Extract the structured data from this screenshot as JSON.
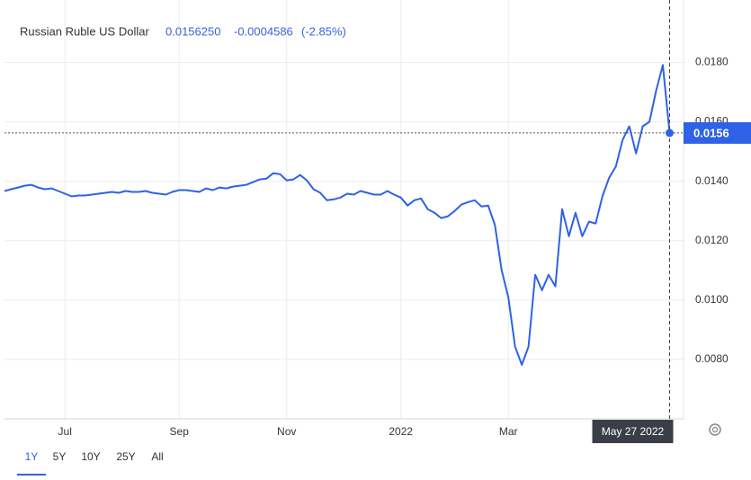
{
  "chart_data": {
    "type": "line",
    "title": "Russian Ruble US Dollar",
    "price": "0.0156250",
    "change": "-0.0004586",
    "change_percent": "(-2.85%)",
    "last_price_label": "0.0156",
    "crosshair_label": "May 27 2022",
    "ranges": [
      "1Y",
      "5Y",
      "10Y",
      "25Y",
      "All"
    ],
    "active_range": "1Y",
    "categories": [
      null,
      null,
      null,
      null,
      null,
      null,
      null,
      null,
      null,
      "Jul",
      null,
      null,
      null,
      null,
      null,
      null,
      null,
      null,
      null,
      null,
      null,
      null,
      null,
      null,
      null,
      null,
      "Sep",
      null,
      null,
      null,
      null,
      null,
      null,
      null,
      null,
      null,
      null,
      null,
      null,
      null,
      null,
      null,
      "Nov",
      null,
      null,
      null,
      null,
      null,
      null,
      null,
      null,
      null,
      null,
      null,
      null,
      null,
      null,
      null,
      null,
      "2022",
      null,
      null,
      null,
      null,
      null,
      null,
      null,
      null,
      null,
      null,
      null,
      null,
      null,
      null,
      null,
      "Mar",
      null,
      null,
      null,
      null,
      null,
      null,
      null,
      null,
      null,
      null,
      null,
      null,
      null,
      null,
      null,
      null,
      null,
      null,
      null,
      null,
      null,
      null,
      null,
      null
    ],
    "series": [
      {
        "name": "Russian Ruble US Dollar",
        "color": "#2f62e6",
        "values": [
          0.01367,
          0.01373,
          0.01379,
          0.01385,
          0.01388,
          0.01379,
          0.01373,
          0.01376,
          0.01367,
          0.01358,
          0.01349,
          0.01352,
          0.01352,
          0.01355,
          0.01358,
          0.01361,
          0.01364,
          0.01361,
          0.01367,
          0.01364,
          0.01364,
          0.01367,
          0.01361,
          0.01358,
          0.01355,
          0.01364,
          0.0137,
          0.0137,
          0.01367,
          0.01364,
          0.01376,
          0.0137,
          0.01379,
          0.01376,
          0.01382,
          0.01385,
          0.01388,
          0.01397,
          0.01406,
          0.01409,
          0.01427,
          0.01424,
          0.01403,
          0.01406,
          0.01421,
          0.01403,
          0.01373,
          0.01361,
          0.01336,
          0.01339,
          0.01345,
          0.01358,
          0.01355,
          0.01367,
          0.01361,
          0.01355,
          0.01355,
          0.01367,
          0.01355,
          0.01345,
          0.01318,
          0.01336,
          0.01342,
          0.01306,
          0.01294,
          0.01276,
          0.01282,
          0.013,
          0.01321,
          0.0133,
          0.01336,
          0.01315,
          0.01318,
          0.01252,
          0.011,
          0.01009,
          0.00843,
          0.00782,
          0.00843,
          0.01085,
          0.01033,
          0.01085,
          0.01046,
          0.01306,
          0.01215,
          0.01294,
          0.01215,
          0.01264,
          0.01258,
          0.01349,
          0.01412,
          0.01449,
          0.01539,
          0.01585,
          0.01494,
          0.01585,
          0.016,
          0.01706,
          0.01791,
          0.015625
        ]
      }
    ],
    "ylim": [
      0.006,
      0.01995
    ],
    "yticks": [
      {
        "value": 0.008,
        "label": "0.0080"
      },
      {
        "value": 0.01,
        "label": "0.0100"
      },
      {
        "value": 0.012,
        "label": "0.0120"
      },
      {
        "value": 0.014,
        "label": "0.0140"
      },
      {
        "value": 0.016,
        "label": "0.0160"
      },
      {
        "value": 0.018,
        "label": "0.0180"
      }
    ],
    "grid": true
  }
}
